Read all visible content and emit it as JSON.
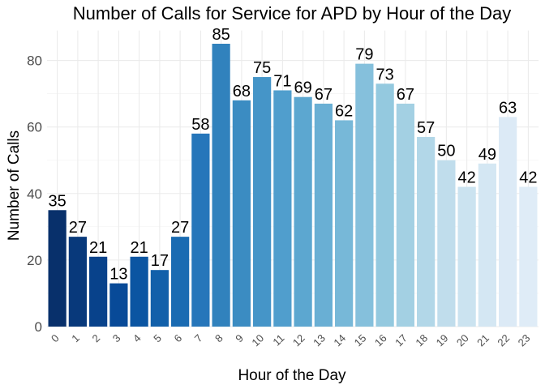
{
  "chart_data": {
    "type": "bar",
    "title": "Number of Calls for Service for APD by Hour of the Day",
    "xlabel": "Hour of the Day",
    "ylabel": "Number of Calls",
    "categories": [
      "0",
      "1",
      "2",
      "3",
      "4",
      "5",
      "6",
      "7",
      "8",
      "9",
      "10",
      "11",
      "12",
      "13",
      "14",
      "15",
      "16",
      "17",
      "18",
      "19",
      "20",
      "21",
      "22",
      "23"
    ],
    "values": [
      35,
      27,
      21,
      13,
      21,
      17,
      27,
      58,
      85,
      68,
      75,
      71,
      69,
      67,
      62,
      79,
      73,
      67,
      57,
      50,
      42,
      49,
      63,
      42
    ],
    "yticks": [
      "0",
      "20",
      "40",
      "60",
      "80"
    ],
    "ylim": [
      0,
      89
    ],
    "grid": true,
    "colors": [
      "#08306b",
      "#08397b",
      "#08428b",
      "#084a98",
      "#0b55a2",
      "#1260aa",
      "#1a6bb2",
      "#2676ba",
      "#3182bd",
      "#3b8cc2",
      "#4595c8",
      "#509ecd",
      "#5ca7d0",
      "#69afd4",
      "#77b8d8",
      "#85c0dc",
      "#94c9df",
      "#a3d0e3",
      "#b2d7e8",
      "#c0ddec",
      "#cbe3f0",
      "#d4e7f3",
      "#dceaf6",
      "#dfecf7"
    ]
  }
}
